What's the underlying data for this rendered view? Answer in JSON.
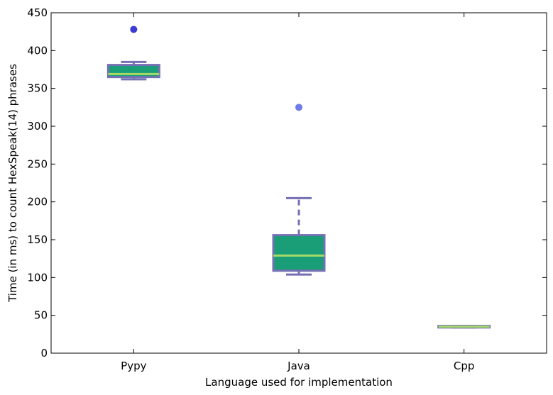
{
  "chart_data": {
    "type": "box",
    "title": "",
    "xlabel": "Language used for implementation",
    "ylabel": "Time (in ms) to count HexSpeak(14) phrases",
    "ylim": [
      0,
      450
    ],
    "yticks": [
      0,
      50,
      100,
      150,
      200,
      250,
      300,
      350,
      400,
      450
    ],
    "categories": [
      "Pypy",
      "Java",
      "Cpp"
    ],
    "boxes": [
      {
        "category": "Pypy",
        "whisker_low": 362,
        "q1": 365,
        "median": 369,
        "q3": 381,
        "whisker_high": 385,
        "outliers": [
          428
        ]
      },
      {
        "category": "Java",
        "whisker_low": 104,
        "q1": 109,
        "median": 129,
        "q3": 156,
        "whisker_high": 205,
        "outliers": [
          325
        ]
      },
      {
        "category": "Cpp",
        "whisker_low": 34,
        "q1": 34,
        "median": 35,
        "q3": 36,
        "whisker_high": 36,
        "outliers": []
      }
    ],
    "grid": false,
    "legend": "none",
    "colors": {
      "box_fill": "#1a9e77",
      "box_edge": "#7570b3",
      "whisker": "#7570b3",
      "median": "#a6d96a",
      "outlier_pypy": "#3b3bd6",
      "outlier_java": "#6f7be8"
    }
  }
}
